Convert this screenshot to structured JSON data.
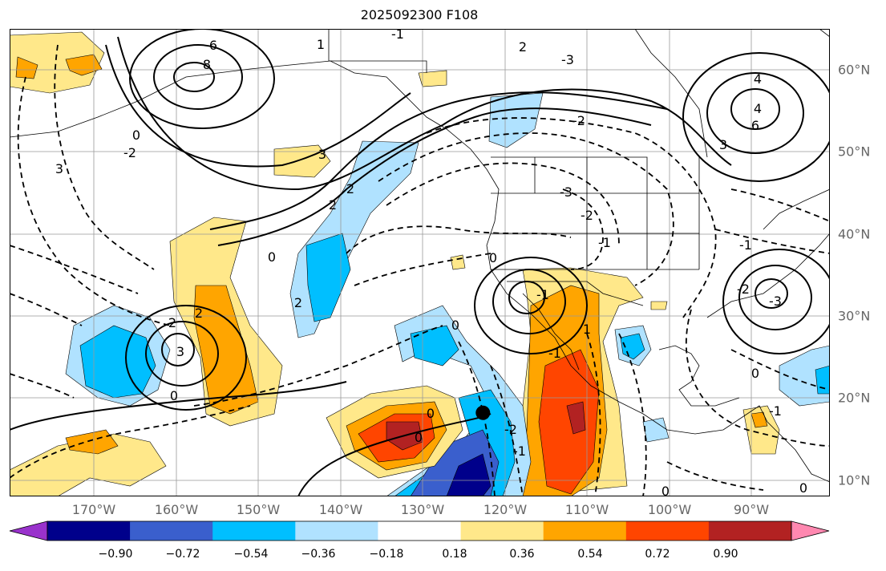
{
  "title": "2025092300 F108",
  "map": {
    "lon_range": [
      -180,
      -80
    ],
    "lat_range": [
      8,
      65
    ],
    "lon_labels": [
      "170°W",
      "160°W",
      "150°W",
      "140°W",
      "130°W",
      "120°W",
      "110°W",
      "100°W",
      "90°W"
    ],
    "lat_labels": [
      "60°N",
      "50°N",
      "40°N",
      "30°N",
      "20°N",
      "10°N"
    ],
    "contour_labels": [
      "6",
      "8",
      "3",
      "0",
      "4",
      "2",
      "-3",
      "-2",
      "-1",
      "1",
      "4",
      "6",
      "3",
      "3",
      "-3",
      "2",
      "-2",
      "2",
      "2",
      "-2",
      "0",
      "-1",
      "-1",
      "0",
      "0",
      "1",
      "-1",
      "-1",
      "2",
      "0",
      "0",
      "0",
      "-2",
      "-1",
      "0",
      "2",
      "3",
      "-3",
      "-2",
      "-1",
      "0",
      "0"
    ],
    "storm_marker": {
      "lon": -122.3,
      "lat": 18.2,
      "color": "#000000"
    }
  },
  "colorbar": {
    "ticks": [
      "−0.90",
      "−0.72",
      "−0.54",
      "−0.36",
      "−0.18",
      "0.18",
      "0.36",
      "0.54",
      "0.72",
      "0.90"
    ],
    "colors": [
      "#9932cc",
      "#00008b",
      "#3a5fcd",
      "#00bfff",
      "#b0e2ff",
      "#ffffff",
      "#ffe88a",
      "#ffa500",
      "#ff4500",
      "#b22222",
      "#ff88b0"
    ]
  }
}
